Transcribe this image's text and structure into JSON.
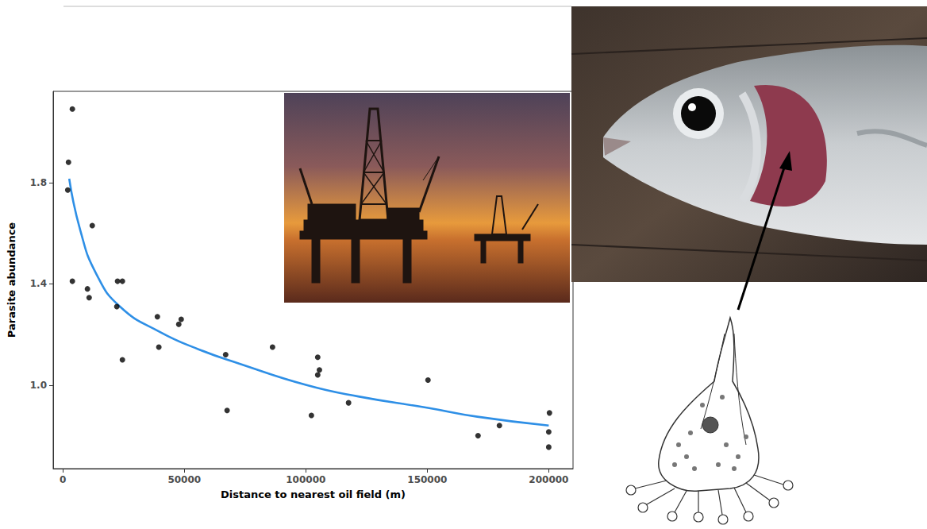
{
  "chart_data": {
    "type": "scatter",
    "x_label": "Distance to nearest oil field (m)",
    "y_label": "Parasite abundance",
    "xlim": [
      -4000,
      210000
    ],
    "xticks": [
      0,
      50000,
      100000,
      150000,
      200000
    ],
    "ylim": [
      0.67,
      2.16
    ],
    "yticks": [
      {
        "value": 1,
        "label": "1.0"
      },
      {
        "value": 1.4,
        "label": "1.4"
      },
      {
        "value": 1.8,
        "label": "1.8"
      }
    ],
    "grid": false,
    "series": [
      {
        "type": "scatter",
        "marker": "circle",
        "color": "#000000",
        "x": [
          2300,
          3900,
          2000,
          3900,
          10100,
          10800,
          12100,
          22500,
          24500,
          22200,
          24500,
          38900,
          39500,
          48700,
          47700,
          67000,
          67600,
          86300,
          104900,
          105600,
          104900,
          102300,
          117600,
          150300,
          170900,
          179700,
          200300,
          200000,
          200000
        ],
        "values": [
          1.88,
          2.09,
          1.77,
          1.41,
          1.38,
          1.345,
          1.63,
          1.41,
          1.41,
          1.31,
          1.1,
          1.27,
          1.15,
          1.26,
          1.24,
          1.12,
          0.9,
          1.15,
          1.11,
          1.06,
          1.04,
          0.88,
          0.93,
          1.02,
          0.8,
          0.84,
          0.89,
          0.815,
          0.755
        ]
      },
      {
        "type": "line",
        "line_style": "solid",
        "color": "#2e8fe6",
        "x": [
          2600,
          7200,
          13700,
          23500,
          39900,
          56200,
          72500,
          100300,
          121600,
          150300,
          170600,
          200000
        ],
        "values": [
          1.815,
          1.61,
          1.44,
          1.31,
          1.21,
          1.14,
          1.085,
          1.0,
          0.955,
          0.91,
          0.875,
          0.84
        ]
      }
    ]
  }
}
